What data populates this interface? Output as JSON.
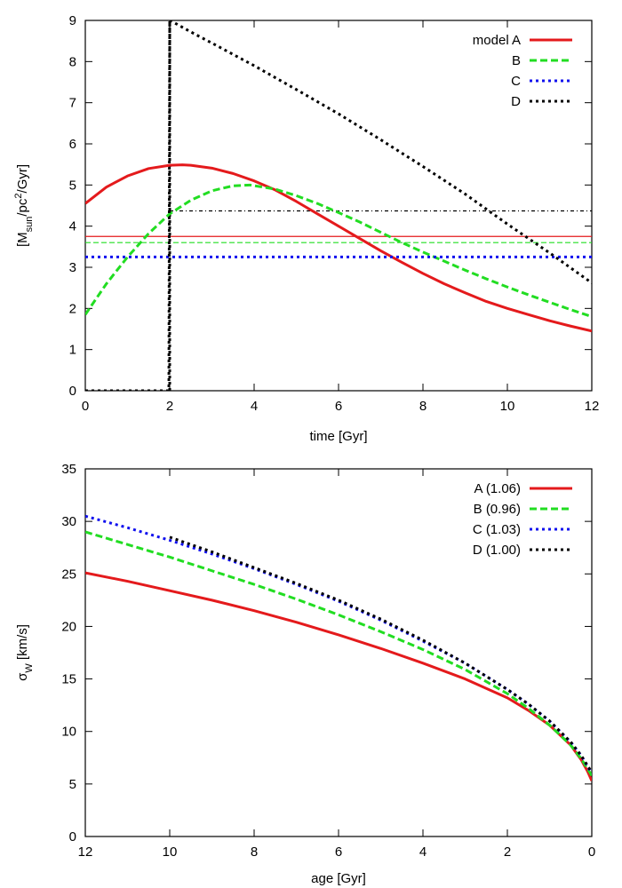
{
  "chart_data": [
    {
      "type": "line",
      "title": "",
      "xlabel": "time [Gyr]",
      "ylabel": "[Mₙᵤₙ/pc²/Gyr]",
      "ylabel_parts": {
        "open": "[M",
        "sub": "sun",
        "mid": "/pc",
        "sup": "2",
        "close": "/Gyr]"
      },
      "xlim": [
        0,
        12
      ],
      "ylim": [
        0,
        9
      ],
      "x_reversed": false,
      "xticks": [
        "0",
        "2",
        "4",
        "6",
        "8",
        "10",
        "12"
      ],
      "yticks": [
        "0",
        "1",
        "2",
        "3",
        "4",
        "5",
        "6",
        "7",
        "8",
        "9"
      ],
      "legend_position": "top-right",
      "series": [
        {
          "name": "model A",
          "color": "#e41a1c",
          "style": "solid",
          "x": [
            0,
            0.5,
            1,
            1.5,
            2,
            2.3,
            2.5,
            3,
            3.5,
            4,
            4.5,
            5,
            5.5,
            6,
            6.5,
            7,
            7.5,
            8,
            8.5,
            9,
            9.5,
            10,
            10.5,
            11,
            11.5,
            12
          ],
          "y": [
            4.55,
            4.95,
            5.22,
            5.4,
            5.48,
            5.49,
            5.48,
            5.41,
            5.28,
            5.1,
            4.88,
            4.6,
            4.3,
            4.0,
            3.7,
            3.4,
            3.12,
            2.85,
            2.6,
            2.38,
            2.17,
            2.0,
            1.85,
            1.7,
            1.57,
            1.45
          ]
        },
        {
          "name": "B",
          "color": "#22dd22",
          "style": "dashed",
          "x": [
            0,
            0.5,
            1,
            1.5,
            2,
            2.5,
            3,
            3.5,
            3.9,
            4.5,
            5,
            5.5,
            6,
            6.5,
            7,
            7.5,
            8,
            8.5,
            9,
            9.5,
            10,
            10.5,
            11,
            11.5,
            12
          ],
          "y": [
            1.85,
            2.6,
            3.25,
            3.82,
            4.3,
            4.63,
            4.86,
            4.98,
            5.0,
            4.9,
            4.74,
            4.55,
            4.33,
            4.1,
            3.85,
            3.6,
            3.37,
            3.15,
            2.93,
            2.72,
            2.52,
            2.33,
            2.15,
            1.97,
            1.8
          ]
        },
        {
          "name": "C",
          "color": "#1010ee",
          "style": "dotted",
          "x": [
            0,
            12
          ],
          "y": [
            3.25,
            3.25
          ]
        },
        {
          "name": "D",
          "color": "#000000",
          "style": "dotted",
          "x": [
            0,
            1.98,
            2,
            2.01,
            2.5,
            3,
            4,
            5,
            6,
            7,
            8,
            9,
            10,
            11,
            12
          ],
          "y": [
            0,
            0,
            9,
            9.0,
            8.72,
            8.45,
            7.9,
            7.32,
            6.73,
            6.1,
            5.45,
            4.78,
            4.05,
            3.35,
            2.62
          ]
        }
      ],
      "reference_lines": [
        {
          "color": "#e41a1c",
          "style": "thin-solid",
          "y": 3.75,
          "x_from": 0,
          "x_to": 12
        },
        {
          "color": "#22dd22",
          "style": "thin-dashed",
          "y": 3.6,
          "x_from": 0,
          "x_to": 12
        },
        {
          "color": "#000000",
          "style": "thin-dash-dot",
          "y": 4.37,
          "x_from": 2,
          "x_to": 12
        },
        {
          "color": "#000000",
          "style": "dotted-vertical",
          "x": 2,
          "y_from": 0,
          "y_to": 9
        }
      ]
    },
    {
      "type": "line",
      "title": "",
      "xlabel": "age [Gyr]",
      "ylabel": "σW [km/s]",
      "ylabel_parts": {
        "sigma": "σ",
        "sub": "W",
        "rest": " [km/s]"
      },
      "xlim": [
        12,
        0
      ],
      "ylim": [
        0,
        35
      ],
      "x_reversed": true,
      "xticks": [
        "12",
        "10",
        "8",
        "6",
        "4",
        "2",
        "0"
      ],
      "yticks": [
        "0",
        "5",
        "10",
        "15",
        "20",
        "25",
        "30",
        "35"
      ],
      "legend_position": "top-right",
      "series": [
        {
          "name": "A (1.06)",
          "color": "#e41a1c",
          "style": "solid",
          "x": [
            12,
            11,
            10,
            9,
            8,
            7,
            6,
            5,
            4,
            3,
            2,
            1.5,
            1,
            0.5,
            0.25,
            0.1,
            0
          ],
          "y": [
            25.1,
            24.3,
            23.4,
            22.5,
            21.5,
            20.4,
            19.2,
            17.9,
            16.5,
            15.0,
            13.2,
            12.0,
            10.6,
            8.7,
            7.3,
            6.2,
            5.3
          ]
        },
        {
          "name": "B (0.96)",
          "color": "#22dd22",
          "style": "dashed",
          "x": [
            12,
            11,
            10,
            9,
            8,
            7,
            6,
            5,
            4,
            3,
            2,
            1.5,
            1,
            0.5,
            0.25,
            0
          ],
          "y": [
            29.0,
            27.8,
            26.6,
            25.3,
            24.0,
            22.6,
            21.1,
            19.5,
            17.8,
            15.9,
            13.6,
            12.2,
            10.6,
            8.7,
            7.4,
            5.8
          ]
        },
        {
          "name": "C (1.03)",
          "color": "#1010ee",
          "style": "dotted",
          "x": [
            12,
            11,
            10,
            9,
            8,
            7,
            6,
            5,
            4,
            3,
            2,
            1.5,
            1,
            0.5,
            0.25,
            0
          ],
          "y": [
            30.5,
            29.4,
            28.2,
            26.9,
            25.5,
            24.0,
            22.4,
            20.6,
            18.6,
            16.5,
            14.0,
            12.6,
            11.0,
            9.0,
            7.7,
            6.0
          ]
        },
        {
          "name": "D (1.00)",
          "color": "#000000",
          "style": "dotted",
          "x": [
            10,
            9,
            8,
            7,
            6,
            5,
            4,
            3,
            2,
            1.5,
            1,
            0.5,
            0.25,
            0
          ],
          "y": [
            28.5,
            27.1,
            25.6,
            24.1,
            22.5,
            20.7,
            18.7,
            16.5,
            14.0,
            12.6,
            11.0,
            9.0,
            7.7,
            6.1
          ]
        }
      ],
      "reference_lines": []
    }
  ]
}
